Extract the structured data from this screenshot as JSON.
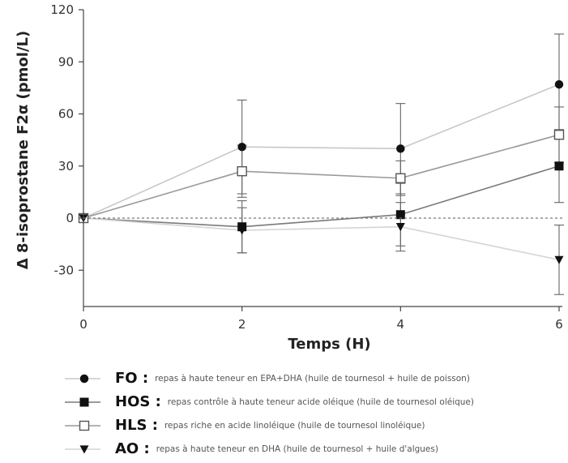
{
  "chart_data": {
    "type": "line",
    "title": "",
    "xlabel": "Temps (H)",
    "ylabel": "Δ 8-isoprostane F2α (pmol/L)",
    "x": [
      0,
      2,
      4,
      6
    ],
    "xticks": [
      "0",
      "2",
      "4",
      "6"
    ],
    "yticks": [
      "120",
      "90",
      "60",
      "30",
      "0",
      "-30"
    ],
    "xlim": [
      0,
      6
    ],
    "ylim": [
      -50,
      120
    ],
    "grid": false,
    "reference_line": 0,
    "legend_position": "bottom",
    "series": [
      {
        "name": "FO",
        "marker": "circle",
        "color": "#c8c8c8",
        "values": [
          0,
          41,
          40,
          77
        ],
        "error": [
          0,
          27,
          26,
          29
        ],
        "description": "repas à haute teneur en EPA+DHA (huile de tournesol + huile de poisson)"
      },
      {
        "name": "HOS",
        "marker": "square",
        "color": "#7a7a7a",
        "values": [
          0,
          -5,
          2,
          30
        ],
        "error": [
          0,
          15,
          18,
          21
        ],
        "description": "repas contrôle à haute teneur acide oléique (huile de tournesol oléique)"
      },
      {
        "name": "HLS",
        "marker": "square-open",
        "color": "#9a9a9a",
        "values": [
          0,
          27,
          23,
          48
        ],
        "error": [
          0,
          15,
          10,
          16
        ],
        "description": "repas riche en acide linoléique (huile de tournesol linoléique)"
      },
      {
        "name": "AO",
        "marker": "triangle-down",
        "color": "#d4d4d4",
        "values": [
          0,
          -7,
          -5,
          -24
        ],
        "error": [
          0,
          13,
          14,
          20
        ],
        "description": "repas à haute teneur en DHA (huile de tournesol + huile d'algues)"
      }
    ]
  }
}
